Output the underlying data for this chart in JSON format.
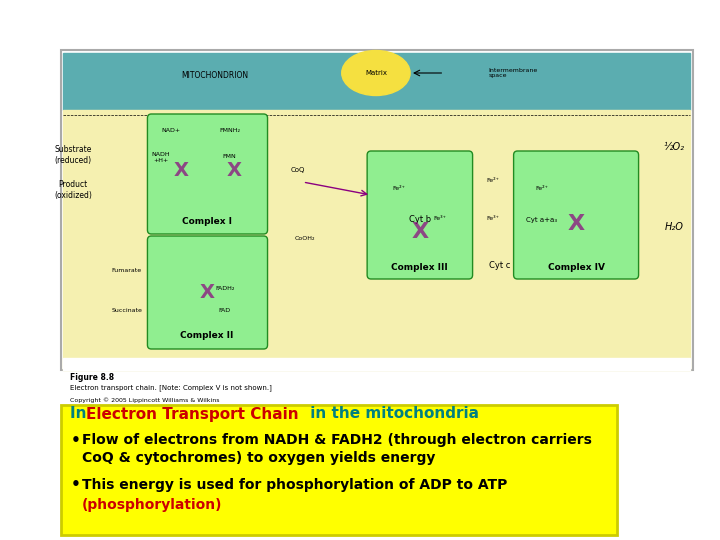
{
  "bg_color": "#ffffff",
  "slide_bg": "#ffffff",
  "outer_box_color": "#cccccc",
  "image_placeholder_color": "#e8e8e8",
  "text_box_bg": "#ffff00",
  "text_box_border": "#cccc00",
  "title_text": "In ",
  "title_highlight": "Electron Transport Chain",
  "title_end": " in the mitochondria",
  "title_color_normal": "#008080",
  "title_color_highlight": "#cc0000",
  "bullet1_line1": "Flow of electrons from NADH & FADH2 (through electron carriers",
  "bullet1_line2": "CoQ & cytochromes) to oxygen yields energy",
  "bullet2_line1": "This energy is used for phosphorylation of ADP to ATP",
  "bullet2_highlight": "(phosphorylation)",
  "bullet_color": "#000000",
  "highlight_color": "#cc0000",
  "bullet_symbol": "•",
  "figure_caption_1": "Figure 8.8",
  "figure_caption_2": "Electron transport chain. [Note: Complex V is not shown.]",
  "figure_caption_3": "Copyright © 2005 Lippincott Williams & Wilkins"
}
